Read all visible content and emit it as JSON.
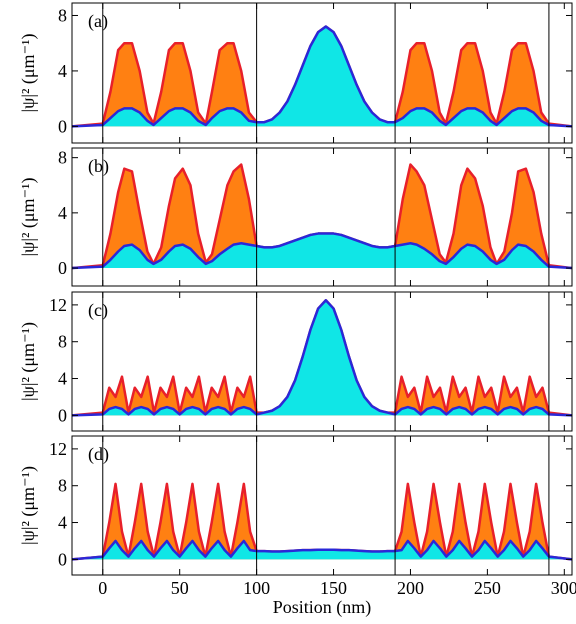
{
  "chart_data": [
    {
      "type": "area",
      "label": "(a)",
      "y_label": "|ψ|² (μm⁻¹)",
      "x": [
        -20,
        0,
        5,
        10,
        14,
        19,
        24,
        29,
        33,
        38,
        43,
        47,
        52,
        57,
        62,
        67,
        71,
        76,
        81,
        85,
        90,
        95,
        100,
        105,
        110,
        115,
        120,
        125,
        130,
        135,
        140,
        145,
        150,
        155,
        160,
        165,
        170,
        175,
        180,
        185,
        190,
        195,
        200,
        204,
        209,
        214,
        219,
        223,
        228,
        233,
        237,
        242,
        247,
        252,
        256,
        261,
        266,
        270,
        275,
        280,
        285,
        290,
        305
      ],
      "series": [
        {
          "color": "#ff8012",
          "edge": "#e8202a",
          "values": [
            0,
            0.2,
            2.5,
            5.5,
            6,
            6,
            4,
            1,
            0.2,
            2.5,
            5.5,
            6,
            6,
            4,
            1,
            0.2,
            2.5,
            5.5,
            6,
            6,
            4,
            1,
            0.3,
            0.3,
            0.5,
            1.0,
            1.8,
            3.0,
            4.4,
            5.8,
            6.8,
            7.2,
            6.8,
            5.8,
            4.4,
            3.0,
            1.8,
            1.0,
            0.5,
            0.3,
            0.3,
            2.5,
            5.5,
            6,
            6,
            4,
            1,
            0.2,
            2.5,
            5.5,
            6,
            6,
            4,
            1,
            0.2,
            2.5,
            5.5,
            6,
            6,
            4,
            1,
            0.2,
            0
          ]
        },
        {
          "color": "#10e6e6",
          "edge": "#2a28d8",
          "values": [
            0,
            0.1,
            0.6,
            1.1,
            1.3,
            1.3,
            1.0,
            0.4,
            0.1,
            0.6,
            1.1,
            1.3,
            1.3,
            1.0,
            0.4,
            0.1,
            0.6,
            1.1,
            1.3,
            1.3,
            1.0,
            0.4,
            0.3,
            0.3,
            0.5,
            1.0,
            1.8,
            3.0,
            4.4,
            5.8,
            6.8,
            7.2,
            6.8,
            5.8,
            4.4,
            3.0,
            1.8,
            1.0,
            0.5,
            0.3,
            0.3,
            0.6,
            1.1,
            1.3,
            1.3,
            1.0,
            0.4,
            0.1,
            0.6,
            1.1,
            1.3,
            1.3,
            1.0,
            0.4,
            0.1,
            0.6,
            1.1,
            1.3,
            1.3,
            1.0,
            0.4,
            0.1,
            0
          ]
        }
      ],
      "xlim": [
        -20,
        305
      ],
      "xticks": [
        0,
        50,
        100,
        150,
        200,
        250,
        300
      ],
      "show_xtick_labels": false,
      "ylim": [
        -1.2,
        8.9
      ],
      "yticks": [
        0,
        4,
        8
      ],
      "vlines": [
        0,
        100,
        190,
        290
      ]
    },
    {
      "type": "area",
      "label": "(b)",
      "y_label": "|ψ|² (μm⁻¹)",
      "x": [
        -20,
        0,
        5,
        10,
        14,
        19,
        24,
        29,
        33,
        38,
        43,
        47,
        52,
        57,
        62,
        67,
        71,
        76,
        81,
        85,
        90,
        95,
        100,
        105,
        110,
        115,
        120,
        125,
        130,
        135,
        140,
        145,
        150,
        155,
        160,
        165,
        170,
        175,
        180,
        185,
        190,
        195,
        200,
        204,
        209,
        214,
        219,
        223,
        228,
        233,
        237,
        242,
        247,
        252,
        256,
        261,
        266,
        270,
        275,
        280,
        285,
        290,
        305
      ],
      "series": [
        {
          "color": "#ff8012",
          "edge": "#e8202a",
          "values": [
            0,
            0.2,
            2.5,
            5.5,
            7.2,
            7.0,
            4.0,
            1.2,
            0.3,
            1.5,
            4.5,
            6.5,
            7.2,
            6.0,
            2.5,
            0.4,
            1.0,
            3.5,
            6.0,
            7.0,
            7.5,
            5.0,
            1.6,
            1.5,
            1.5,
            1.6,
            1.8,
            2.0,
            2.2,
            2.4,
            2.5,
            2.5,
            2.5,
            2.4,
            2.2,
            2.0,
            1.8,
            1.6,
            1.5,
            1.5,
            1.6,
            5.0,
            7.5,
            7.0,
            6.0,
            3.5,
            1.0,
            0.4,
            2.5,
            6.0,
            7.2,
            6.5,
            4.5,
            1.5,
            0.3,
            1.2,
            4.0,
            7.0,
            7.2,
            5.5,
            2.5,
            0.2,
            0
          ]
        },
        {
          "color": "#10e6e6",
          "edge": "#2a28d8",
          "values": [
            0,
            0.1,
            0.6,
            1.2,
            1.6,
            1.7,
            1.3,
            0.6,
            0.3,
            0.6,
            1.2,
            1.6,
            1.7,
            1.4,
            0.8,
            0.3,
            0.5,
            1.0,
            1.4,
            1.7,
            1.8,
            1.7,
            1.6,
            1.5,
            1.5,
            1.6,
            1.8,
            2.0,
            2.2,
            2.4,
            2.5,
            2.5,
            2.5,
            2.4,
            2.2,
            2.0,
            1.8,
            1.6,
            1.5,
            1.5,
            1.6,
            1.7,
            1.8,
            1.7,
            1.4,
            1.0,
            0.5,
            0.3,
            0.8,
            1.4,
            1.7,
            1.6,
            1.2,
            0.6,
            0.3,
            0.6,
            1.3,
            1.7,
            1.6,
            1.2,
            0.6,
            0.1,
            0
          ]
        }
      ],
      "xlim": [
        -20,
        305
      ],
      "xticks": [
        0,
        50,
        100,
        150,
        200,
        250,
        300
      ],
      "show_xtick_labels": false,
      "ylim": [
        -1.3,
        8.7
      ],
      "yticks": [
        0,
        4,
        8
      ],
      "vlines": [
        0,
        100,
        190,
        290
      ]
    },
    {
      "type": "area",
      "label": "(c)",
      "y_label": "|ψ|² (μm⁻¹)",
      "x": [
        -20,
        0,
        4.2,
        8.3,
        12.5,
        16.7,
        20.8,
        25,
        29.2,
        33.3,
        37.5,
        41.7,
        45.8,
        50,
        54.2,
        58.3,
        62.5,
        66.7,
        70.8,
        75,
        79.2,
        83.3,
        87.5,
        91.7,
        95.8,
        100,
        105,
        110,
        115,
        120,
        125,
        130,
        135,
        140,
        145,
        150,
        155,
        160,
        165,
        170,
        175,
        180,
        185,
        190,
        194.2,
        198.3,
        202.5,
        206.7,
        210.8,
        215,
        219.2,
        223.3,
        227.5,
        231.7,
        235.8,
        240,
        244.2,
        248.3,
        252.5,
        256.7,
        260.8,
        265,
        269.2,
        273.3,
        277.5,
        281.7,
        285.8,
        290,
        305
      ],
      "series": [
        {
          "color": "#ff8012",
          "edge": "#e8202a",
          "values": [
            0,
            0.3,
            3.0,
            2.0,
            4.2,
            0.3,
            3.0,
            2.0,
            4.2,
            0.3,
            3.0,
            2.0,
            4.2,
            0.3,
            3.0,
            2.0,
            4.2,
            0.3,
            3.0,
            2.0,
            4.2,
            0.3,
            3.0,
            2.0,
            4.2,
            0.3,
            0.3,
            0.5,
            1.0,
            2.0,
            3.8,
            6.4,
            9.3,
            11.6,
            12.5,
            11.6,
            9.3,
            6.4,
            3.8,
            2.0,
            1.0,
            0.5,
            0.3,
            0.3,
            4.2,
            2.0,
            3.0,
            0.3,
            4.2,
            2.0,
            3.0,
            0.3,
            4.2,
            2.0,
            3.0,
            0.3,
            4.2,
            2.0,
            3.0,
            0.3,
            4.2,
            2.0,
            3.0,
            0.3,
            4.2,
            2.0,
            3.0,
            0.3,
            0
          ]
        },
        {
          "color": "#10e6e6",
          "edge": "#2a28d8",
          "values": [
            0,
            0.1,
            0.7,
            0.9,
            0.7,
            0.1,
            0.7,
            0.9,
            0.7,
            0.1,
            0.7,
            0.9,
            0.7,
            0.1,
            0.7,
            0.9,
            0.7,
            0.1,
            0.7,
            0.9,
            0.7,
            0.1,
            0.7,
            0.9,
            0.7,
            0.1,
            0.3,
            0.5,
            1.0,
            2.0,
            3.8,
            6.4,
            9.3,
            11.6,
            12.5,
            11.6,
            9.3,
            6.4,
            3.8,
            2.0,
            1.0,
            0.5,
            0.3,
            0.1,
            0.7,
            0.9,
            0.7,
            0.1,
            0.7,
            0.9,
            0.7,
            0.1,
            0.7,
            0.9,
            0.7,
            0.1,
            0.7,
            0.9,
            0.7,
            0.1,
            0.7,
            0.9,
            0.7,
            0.1,
            0.7,
            0.9,
            0.7,
            0.1,
            0
          ]
        }
      ],
      "xlim": [
        -20,
        305
      ],
      "xticks": [
        0,
        50,
        100,
        150,
        200,
        250,
        300
      ],
      "show_xtick_labels": false,
      "ylim": [
        -1.7,
        13.4
      ],
      "yticks": [
        0,
        4,
        8,
        12
      ],
      "vlines": [
        0,
        100,
        190,
        290
      ]
    },
    {
      "type": "area",
      "label": "(d)",
      "y_label": "|ψ|² (μm⁻¹)",
      "x_label": "Position (nm)",
      "x": [
        -20,
        0,
        4.2,
        8.3,
        12.5,
        16.7,
        20.8,
        25,
        29.2,
        33.3,
        37.5,
        41.7,
        45.8,
        50,
        54.2,
        58.3,
        62.5,
        66.7,
        70.8,
        75,
        79.2,
        83.3,
        87.5,
        91.7,
        95.8,
        100,
        105,
        110,
        115,
        120,
        125,
        130,
        135,
        140,
        145,
        150,
        155,
        160,
        165,
        170,
        175,
        180,
        185,
        190,
        194.2,
        198.3,
        202.5,
        206.7,
        210.8,
        215,
        219.2,
        223.3,
        227.5,
        231.7,
        235.8,
        240,
        244.2,
        248.3,
        252.5,
        256.7,
        260.8,
        265,
        269.2,
        273.3,
        277.5,
        281.7,
        285.8,
        290,
        305
      ],
      "series": [
        {
          "color": "#ff8012",
          "edge": "#e8202a",
          "values": [
            0,
            0.3,
            4.0,
            8.2,
            3.0,
            0.3,
            4.0,
            8.2,
            3.0,
            0.3,
            4.0,
            8.2,
            3.0,
            0.3,
            4.0,
            8.2,
            3.0,
            0.3,
            4.0,
            8.2,
            3.0,
            0.3,
            4.0,
            8.2,
            3.0,
            0.9,
            0.9,
            0.85,
            0.85,
            0.9,
            0.95,
            1.0,
            1.0,
            1.05,
            1.05,
            1.05,
            1.0,
            1.0,
            0.95,
            0.9,
            0.85,
            0.85,
            0.9,
            0.9,
            3.0,
            8.2,
            4.0,
            0.3,
            3.0,
            8.2,
            4.0,
            0.3,
            3.0,
            8.2,
            4.0,
            0.3,
            3.0,
            8.2,
            4.0,
            0.3,
            3.0,
            8.2,
            4.0,
            0.3,
            3.0,
            8.2,
            4.0,
            0.3,
            0
          ]
        },
        {
          "color": "#10e6e6",
          "edge": "#2a28d8",
          "values": [
            0,
            0.3,
            1.2,
            2.0,
            1.0,
            0.3,
            1.2,
            2.0,
            1.0,
            0.3,
            1.2,
            2.0,
            1.0,
            0.3,
            1.2,
            2.0,
            1.0,
            0.3,
            1.2,
            2.0,
            1.0,
            0.3,
            1.2,
            2.0,
            1.0,
            0.9,
            0.9,
            0.85,
            0.85,
            0.9,
            0.95,
            1.0,
            1.0,
            1.05,
            1.05,
            1.05,
            1.0,
            1.0,
            0.95,
            0.9,
            0.85,
            0.85,
            0.9,
            0.9,
            1.0,
            2.0,
            1.2,
            0.3,
            1.0,
            2.0,
            1.2,
            0.3,
            1.0,
            2.0,
            1.2,
            0.3,
            1.0,
            2.0,
            1.2,
            0.3,
            1.0,
            2.0,
            1.2,
            0.3,
            1.0,
            2.0,
            1.2,
            0.3,
            0
          ]
        }
      ],
      "xlim": [
        -20,
        305
      ],
      "xticks": [
        0,
        50,
        100,
        150,
        200,
        250,
        300
      ],
      "show_xtick_labels": true,
      "ylim": [
        -1.7,
        13.4
      ],
      "yticks": [
        0,
        4,
        8,
        12
      ],
      "vlines": [
        0,
        100,
        190,
        290
      ]
    }
  ]
}
